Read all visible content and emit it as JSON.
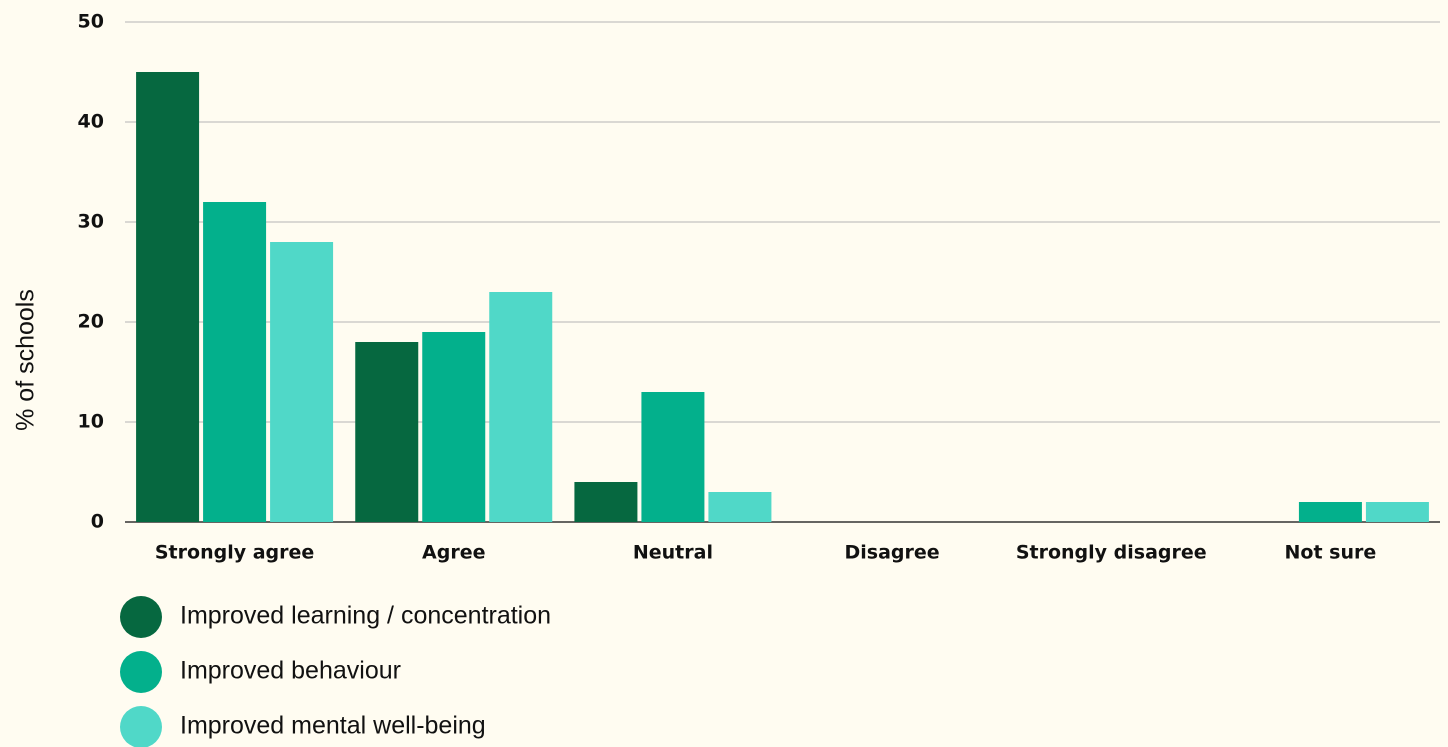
{
  "chart_data": {
    "type": "bar",
    "y_label": "% of schools",
    "categories": [
      "Strongly agree",
      "Agree",
      "Neutral",
      "Disagree",
      "Strongly disagree",
      "Not sure"
    ],
    "series": [
      {
        "name": "Improved learning / concentration",
        "color": "#066840",
        "values": [
          45,
          18,
          4,
          0,
          0,
          0
        ]
      },
      {
        "name": "Improved behaviour",
        "color": "#03b08c",
        "values": [
          32,
          19,
          13,
          0,
          0,
          2
        ]
      },
      {
        "name": "Improved mental well-being",
        "color": "#50d8c8",
        "values": [
          28,
          23,
          3,
          0,
          0,
          2
        ]
      }
    ],
    "ylim": [
      0,
      50
    ],
    "yticks": [
      0,
      10,
      20,
      30,
      40,
      50
    ],
    "grid": true
  }
}
